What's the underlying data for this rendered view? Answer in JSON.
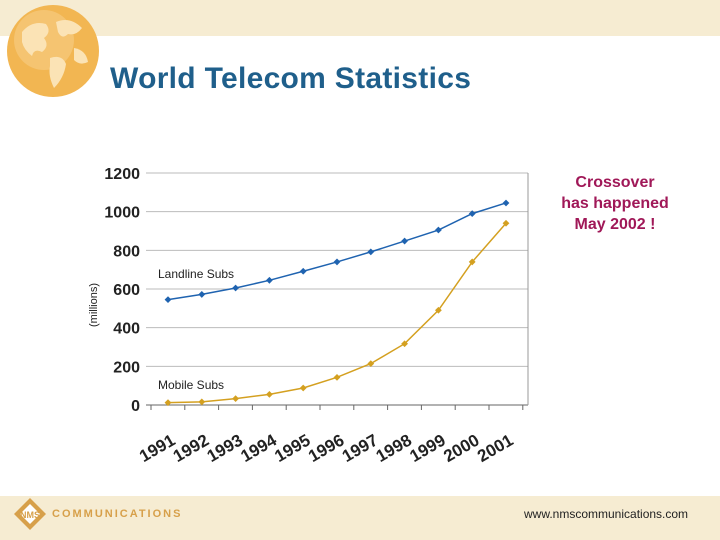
{
  "header": {
    "title": "World Telecom Statistics"
  },
  "callout": {
    "lines": [
      "Crossover",
      "has happened",
      "May 2002 !"
    ]
  },
  "footer": {
    "logo_letters": "NMS",
    "logo_text": "COMMUNICATIONS",
    "website": "www.nmscommunications.com"
  },
  "colors": {
    "landline": "#1f63b0",
    "mobile": "#d4a020",
    "title": "#1f5f8b",
    "callout": "#a01858",
    "band": "#f6ecd2"
  },
  "chart_data": {
    "type": "line",
    "ylabel": "(millions)",
    "ylim": [
      0,
      1200
    ],
    "yticks": [
      "0",
      "200",
      "400",
      "600",
      "800",
      "1000",
      "1200"
    ],
    "categories": [
      "1991",
      "1992",
      "1993",
      "1994",
      "1995",
      "1996",
      "1997",
      "1998",
      "1999",
      "2000",
      "2001"
    ],
    "x_points": 11,
    "landline": {
      "name": "Landline Subs",
      "values": [
        545,
        572,
        605,
        645,
        692,
        740,
        792,
        848,
        905,
        990,
        1045
      ]
    },
    "mobile": {
      "name": "Mobile Subs",
      "values": [
        12,
        16,
        33,
        55,
        88,
        143,
        214,
        317,
        490,
        740,
        940
      ]
    }
  }
}
